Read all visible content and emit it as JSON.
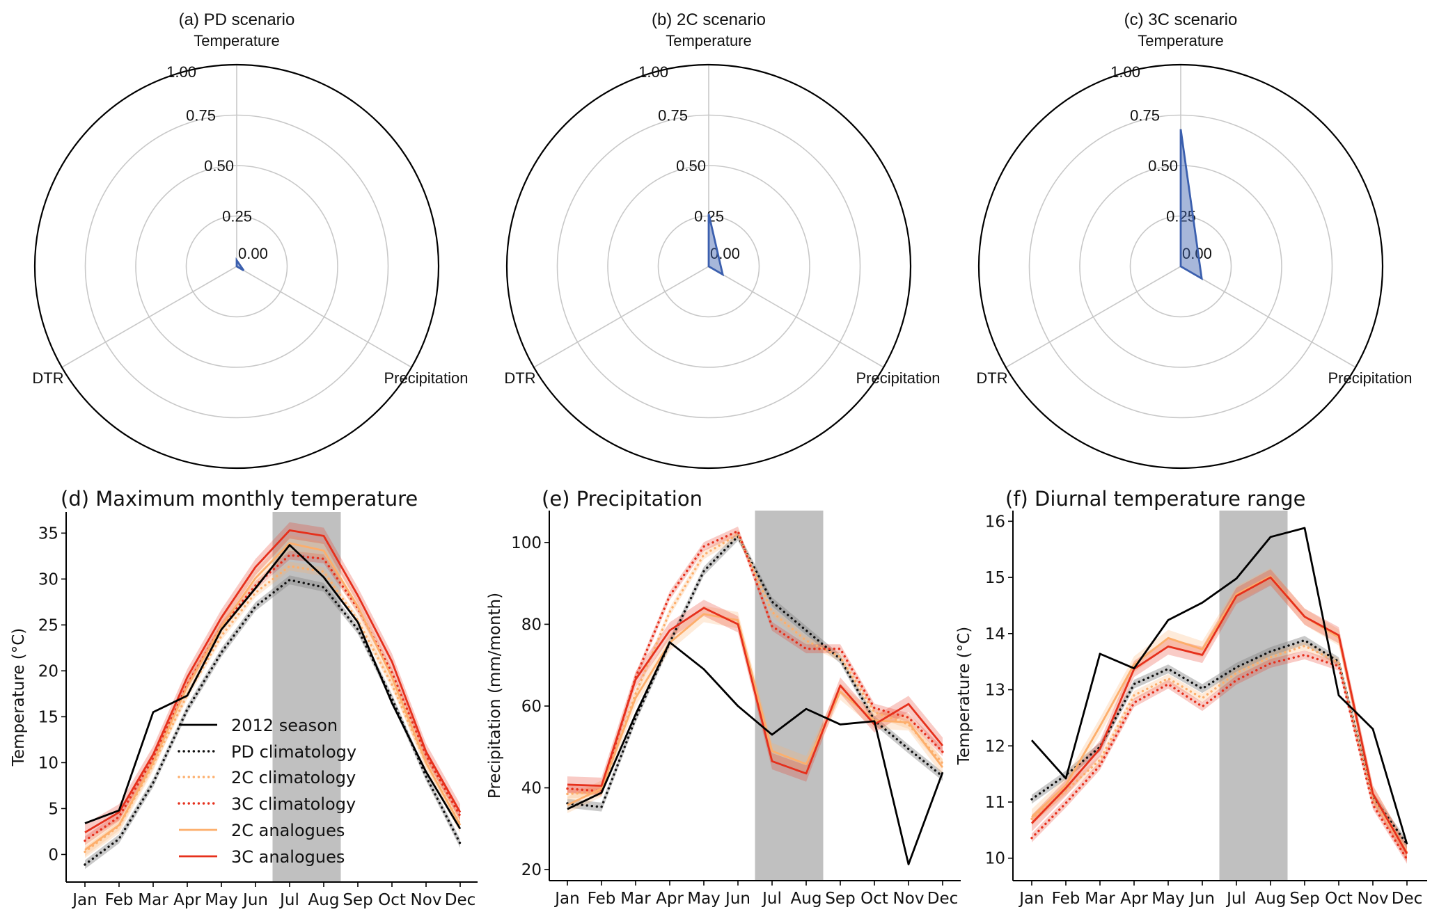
{
  "figure": {
    "months": [
      "Jan",
      "Feb",
      "Mar",
      "Apr",
      "May",
      "Jun",
      "Jul",
      "Aug",
      "Sep",
      "Oct",
      "Nov",
      "Dec"
    ],
    "highlight_months": [
      "Jul",
      "Aug"
    ],
    "colors": {
      "season": "#000000",
      "pd": "#111111",
      "c2": "#fdae6b",
      "c3": "#e6301c",
      "radar_fill": "#3b5fae",
      "highlight": "#c0c0c0",
      "grid": "#c8c8c8"
    }
  },
  "chart_data": [
    {
      "type": "radar",
      "title": "(a) PD scenario",
      "axes": [
        "Temperature",
        "Precipitation",
        "DTR"
      ],
      "values": [
        0.03,
        0.04,
        0.0
      ],
      "rlim": [
        0,
        1
      ],
      "rticks": [
        "0.00",
        "0.25",
        "0.50",
        "0.75",
        "1.00"
      ]
    },
    {
      "type": "radar",
      "title": "(b) 2C scenario",
      "axes": [
        "Temperature",
        "Precipitation",
        "DTR"
      ],
      "values": [
        0.26,
        0.08,
        0.0
      ],
      "rlim": [
        0,
        1
      ],
      "rticks": [
        "0.00",
        "0.25",
        "0.50",
        "0.75",
        "1.00"
      ]
    },
    {
      "type": "radar",
      "title": "(c) 3C scenario",
      "axes": [
        "Temperature",
        "Precipitation",
        "DTR"
      ],
      "values": [
        0.68,
        0.12,
        0.0
      ],
      "rlim": [
        0,
        1
      ],
      "rticks": [
        "0.00",
        "0.25",
        "0.50",
        "0.75",
        "1.00"
      ]
    },
    {
      "type": "line",
      "title": "(d) Maximum monthly temperature",
      "xlabel": "",
      "ylabel": "Temperature (°C)",
      "ylim": [
        -3.0,
        37.3
      ],
      "yticks": [
        0,
        5,
        10,
        15,
        20,
        25,
        30,
        35
      ],
      "categories": [
        "Jan",
        "Feb",
        "Mar",
        "Apr",
        "May",
        "Jun",
        "Jul",
        "Aug",
        "Sep",
        "Oct",
        "Nov",
        "Dec"
      ],
      "legend": "lower-center",
      "series": [
        {
          "name": "2012 season",
          "style": "solid",
          "color": "season",
          "values": [
            3.4,
            4.8,
            15.5,
            17.3,
            24.5,
            29.0,
            33.7,
            30.2,
            25.3,
            16.5,
            9.0,
            2.8
          ]
        },
        {
          "name": "PD climatology",
          "style": "dotted",
          "color": "pd",
          "values": [
            -1.1,
            1.7,
            7.8,
            15.8,
            22.0,
            27.0,
            29.9,
            29.1,
            24.5,
            17.0,
            8.5,
            1.2
          ]
        },
        {
          "name": "2C climatology",
          "style": "dotted",
          "color": "c2",
          "values": [
            0.3,
            3.1,
            9.8,
            17.4,
            23.8,
            28.5,
            31.4,
            30.8,
            25.5,
            18.5,
            10.0,
            3.3
          ]
        },
        {
          "name": "3C climatology",
          "style": "dotted",
          "color": "c3",
          "values": [
            1.5,
            4.1,
            10.5,
            18.5,
            24.8,
            29.3,
            32.6,
            32.2,
            26.8,
            19.8,
            10.8,
            4.2
          ]
        },
        {
          "name": "2C analogues",
          "style": "solid",
          "color": "c2",
          "values": [
            0.5,
            3.2,
            10.0,
            18.3,
            24.8,
            30.1,
            33.9,
            33.1,
            27.0,
            19.3,
            10.0,
            3.2
          ]
        },
        {
          "name": "3C analogues",
          "style": "solid",
          "color": "c3",
          "values": [
            2.4,
            4.6,
            10.9,
            19.3,
            25.8,
            31.3,
            35.3,
            34.7,
            28.2,
            21.0,
            11.2,
            4.6
          ]
        }
      ]
    },
    {
      "type": "line",
      "title": "(e) Precipitation",
      "xlabel": "",
      "ylabel": "Precipitation (mm/month)",
      "ylim": [
        17.3,
        107.8
      ],
      "yticks": [
        20,
        40,
        60,
        80,
        100
      ],
      "categories": [
        "Jan",
        "Feb",
        "Mar",
        "Apr",
        "May",
        "Jun",
        "Jul",
        "Aug",
        "Sep",
        "Oct",
        "Nov",
        "Dec"
      ],
      "series": [
        {
          "name": "2012 season",
          "style": "solid",
          "color": "season",
          "values": [
            34.8,
            38.8,
            58.0,
            75.6,
            69.0,
            60.0,
            53.0,
            59.3,
            55.5,
            56.3,
            21.3,
            43.8
          ]
        },
        {
          "name": "PD climatology",
          "style": "dotted",
          "color": "pd",
          "values": [
            36.2,
            35.3,
            57.0,
            75.5,
            93.0,
            101.5,
            85.5,
            78.5,
            71.5,
            56.5,
            49.5,
            42.8
          ]
        },
        {
          "name": "2C climatology",
          "style": "dotted",
          "color": "c2",
          "values": [
            38.5,
            39.0,
            63.0,
            83.0,
            97.0,
            102.0,
            83.0,
            76.0,
            72.0,
            58.5,
            55.5,
            46.0
          ]
        },
        {
          "name": "3C climatology",
          "style": "dotted",
          "color": "c3",
          "values": [
            39.8,
            39.2,
            67.0,
            87.0,
            99.0,
            102.8,
            79.5,
            74.0,
            74.0,
            59.5,
            57.2,
            48.8
          ]
        },
        {
          "name": "2C analogues",
          "style": "solid",
          "color": "c2",
          "values": [
            35.8,
            39.8,
            62.0,
            75.5,
            82.5,
            81.0,
            49.0,
            45.8,
            63.5,
            56.5,
            56.0,
            45.0
          ]
        },
        {
          "name": "3C analogues",
          "style": "solid",
          "color": "c3",
          "values": [
            40.8,
            40.5,
            66.5,
            78.5,
            84.0,
            80.0,
            46.5,
            43.5,
            65.0,
            55.5,
            60.5,
            50.3
          ]
        }
      ]
    },
    {
      "type": "line",
      "title": "(f) Diurnal temperature range",
      "xlabel": "",
      "ylabel": "Temperature (°C)",
      "ylim": [
        9.6,
        16.19
      ],
      "yticks": [
        10,
        11,
        12,
        13,
        14,
        15,
        16
      ],
      "categories": [
        "Jan",
        "Feb",
        "Mar",
        "Apr",
        "May",
        "Jun",
        "Jul",
        "Aug",
        "Sep",
        "Oct",
        "Nov",
        "Dec"
      ],
      "series": [
        {
          "name": "2012 season",
          "style": "solid",
          "color": "season",
          "values": [
            12.1,
            11.42,
            13.64,
            13.38,
            14.24,
            14.55,
            14.98,
            15.72,
            15.88,
            12.9,
            12.3,
            10.25
          ]
        },
        {
          "name": "PD climatology",
          "style": "dotted",
          "color": "pd",
          "values": [
            11.05,
            11.48,
            11.98,
            13.1,
            13.37,
            13.02,
            13.4,
            13.68,
            13.88,
            13.5,
            11.1,
            10.25
          ]
        },
        {
          "name": "2C climatology",
          "style": "dotted",
          "color": "c2",
          "values": [
            10.7,
            11.2,
            11.75,
            12.9,
            13.2,
            12.85,
            13.3,
            13.58,
            13.78,
            13.48,
            11.05,
            10.1
          ]
        },
        {
          "name": "3C climatology",
          "style": "dotted",
          "color": "c3",
          "values": [
            10.36,
            10.98,
            11.65,
            12.77,
            13.1,
            12.7,
            13.17,
            13.47,
            13.62,
            13.42,
            10.95,
            9.98
          ]
        },
        {
          "name": "2C analogues",
          "style": "solid",
          "color": "c2",
          "values": [
            10.73,
            11.3,
            12.35,
            13.45,
            13.92,
            13.72,
            14.7,
            15.02,
            14.3,
            13.93,
            11.15,
            10.1
          ]
        },
        {
          "name": "3C analogues",
          "style": "solid",
          "color": "c3",
          "values": [
            10.62,
            11.25,
            11.95,
            13.37,
            13.77,
            13.62,
            14.67,
            15.0,
            14.3,
            13.97,
            11.15,
            10.08
          ]
        }
      ]
    }
  ]
}
